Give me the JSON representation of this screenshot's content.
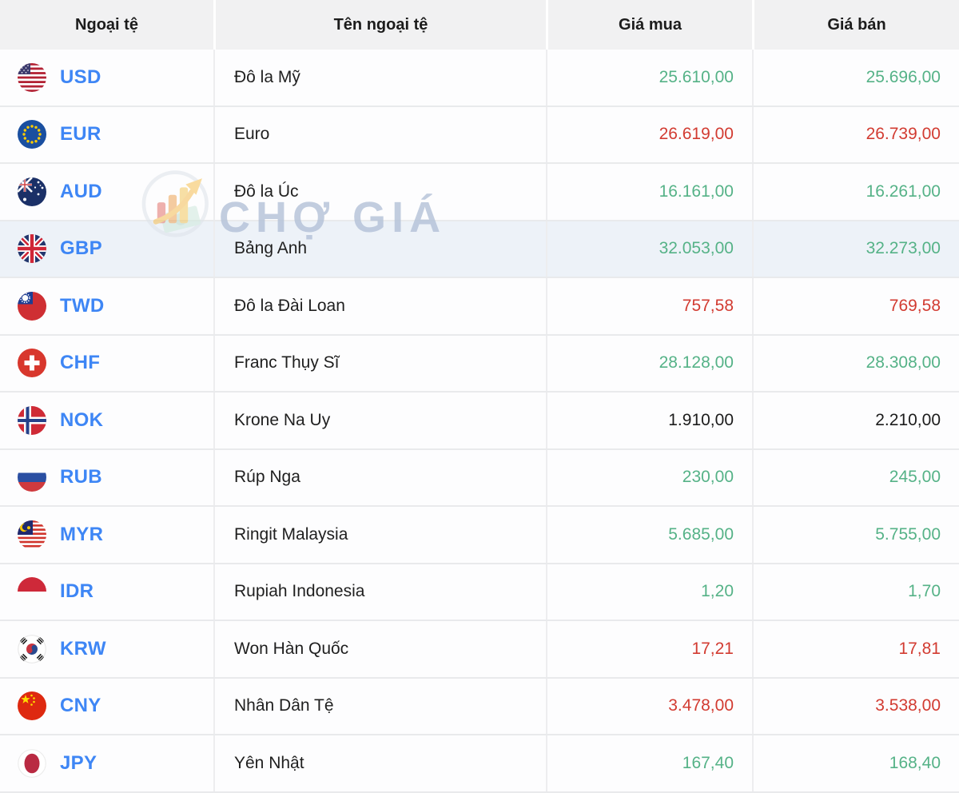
{
  "table": {
    "headers": [
      "Ngoại tệ",
      "Tên ngoại tệ",
      "Giá mua",
      "Giá bán"
    ],
    "rows": [
      {
        "code": "USD",
        "flag": "us",
        "name": "Đô la Mỹ",
        "buy": "25.610,00",
        "sell": "25.696,00",
        "trend": "up",
        "highlighted": false
      },
      {
        "code": "EUR",
        "flag": "eu",
        "name": "Euro",
        "buy": "26.619,00",
        "sell": "26.739,00",
        "trend": "down",
        "highlighted": false
      },
      {
        "code": "AUD",
        "flag": "au",
        "name": "Đô la Úc",
        "buy": "16.161,00",
        "sell": "16.261,00",
        "trend": "up",
        "highlighted": false
      },
      {
        "code": "GBP",
        "flag": "gb",
        "name": "Bảng Anh",
        "buy": "32.053,00",
        "sell": "32.273,00",
        "trend": "up",
        "highlighted": true
      },
      {
        "code": "TWD",
        "flag": "tw",
        "name": "Đô la Đài Loan",
        "buy": "757,58",
        "sell": "769,58",
        "trend": "down",
        "highlighted": false
      },
      {
        "code": "CHF",
        "flag": "ch",
        "name": "Franc Thụy Sĩ",
        "buy": "28.128,00",
        "sell": "28.308,00",
        "trend": "up",
        "highlighted": false
      },
      {
        "code": "NOK",
        "flag": "no",
        "name": "Krone Na Uy",
        "buy": "1.910,00",
        "sell": "2.210,00",
        "trend": "neutral",
        "highlighted": false
      },
      {
        "code": "RUB",
        "flag": "ru",
        "name": "Rúp Nga",
        "buy": "230,00",
        "sell": "245,00",
        "trend": "up",
        "highlighted": false
      },
      {
        "code": "MYR",
        "flag": "my",
        "name": "Ringit Malaysia",
        "buy": "5.685,00",
        "sell": "5.755,00",
        "trend": "up",
        "highlighted": false
      },
      {
        "code": "IDR",
        "flag": "id",
        "name": "Rupiah Indonesia",
        "buy": "1,20",
        "sell": "1,70",
        "trend": "up",
        "highlighted": false
      },
      {
        "code": "KRW",
        "flag": "kr",
        "name": "Won Hàn Quốc",
        "buy": "17,21",
        "sell": "17,81",
        "trend": "down",
        "highlighted": false
      },
      {
        "code": "CNY",
        "flag": "cn",
        "name": "Nhân Dân Tệ",
        "buy": "3.478,00",
        "sell": "3.538,00",
        "trend": "down",
        "highlighted": false
      },
      {
        "code": "JPY",
        "flag": "jp",
        "name": "Yên Nhật",
        "buy": "167,40",
        "sell": "168,40",
        "trend": "up",
        "highlighted": false
      }
    ]
  },
  "watermark": {
    "text": "CHỢ GIÁ"
  },
  "colors": {
    "price_up": "#55b287",
    "price_down": "#d23b31",
    "price_neutral": "#1c1c1c",
    "currency_code": "#3e86f5",
    "header_bg": "#f1f1f2",
    "highlight_row_bg": "#edf2f8"
  }
}
